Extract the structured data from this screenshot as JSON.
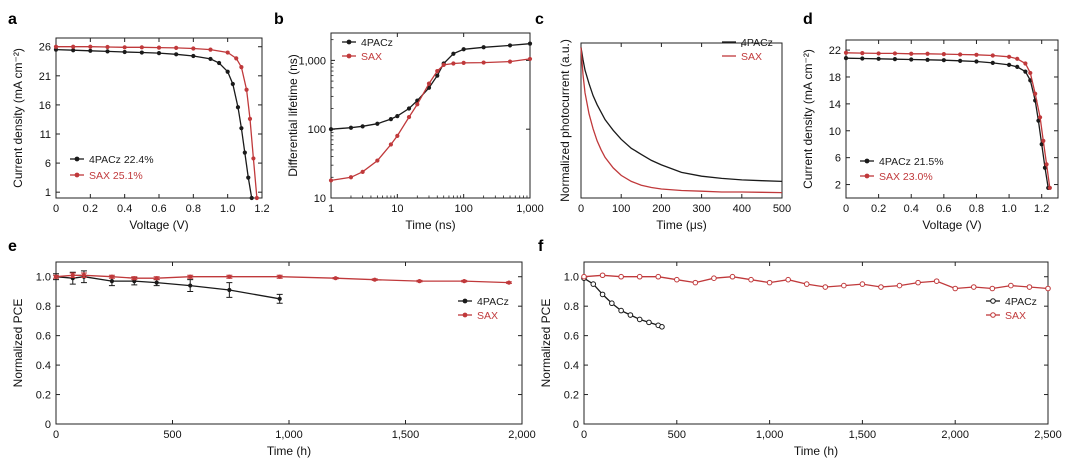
{
  "colors": {
    "black": "#1a1a1a",
    "red": "#c0393b"
  },
  "chart_data": [
    {
      "panel": "a",
      "type": "line",
      "xlabel": "Voltage (V)",
      "ylabel": "Current density (mA cm⁻²)",
      "xlim": [
        0,
        1.2
      ],
      "ylim": [
        0,
        27.5
      ],
      "xticks": [
        0,
        0.2,
        0.4,
        0.6,
        0.8,
        1.0,
        1.2
      ],
      "xtick_labels": [
        "0",
        "0.2",
        "0.4",
        "0.6",
        "0.8",
        "1.0",
        "1.2"
      ],
      "yticks": [
        1,
        6,
        11,
        16,
        21,
        26
      ],
      "ytick_labels": [
        "1",
        "6",
        "11",
        "16",
        "21",
        "26"
      ],
      "series": [
        {
          "name": "4PACz",
          "legend": "4PACz  22.4%",
          "color": "#1a1a1a",
          "marker": "dot",
          "x": [
            0,
            0.1,
            0.2,
            0.3,
            0.4,
            0.5,
            0.6,
            0.7,
            0.8,
            0.9,
            0.95,
            1.0,
            1.03,
            1.06,
            1.08,
            1.1,
            1.12,
            1.14
          ],
          "y": [
            25.5,
            25.4,
            25.3,
            25.2,
            25.1,
            25.0,
            24.9,
            24.7,
            24.4,
            23.9,
            23.2,
            21.7,
            19.6,
            15.6,
            12.0,
            7.8,
            3.5,
            0
          ]
        },
        {
          "name": "SAX",
          "legend": "SAX  25.1%",
          "color": "#c0393b",
          "marker": "dot",
          "x": [
            0,
            0.1,
            0.2,
            0.3,
            0.4,
            0.5,
            0.6,
            0.7,
            0.8,
            0.9,
            1.0,
            1.05,
            1.08,
            1.11,
            1.13,
            1.15,
            1.17
          ],
          "y": [
            26.0,
            26.0,
            26.0,
            25.95,
            25.9,
            25.9,
            25.85,
            25.8,
            25.7,
            25.5,
            25.0,
            24.0,
            22.5,
            18.6,
            13.6,
            6.8,
            0
          ]
        }
      ]
    },
    {
      "panel": "b",
      "type": "line",
      "xlabel": "Time (ns)",
      "ylabel": "Differential lifetime (ns)",
      "xscale": "log",
      "yscale": "log",
      "xlim": [
        1,
        1000
      ],
      "ylim": [
        10,
        2500
      ],
      "xticks": [
        1,
        10,
        100,
        1000
      ],
      "xtick_labels": [
        "1",
        "10",
        "100",
        "1,000"
      ],
      "yticks": [
        10,
        100,
        1000
      ],
      "ytick_labels": [
        "10",
        "100",
        "1,000"
      ],
      "series": [
        {
          "name": "4PACz",
          "legend": "4PACz",
          "color": "#1a1a1a",
          "marker": "dot",
          "x": [
            1,
            2,
            3,
            5,
            8,
            10,
            15,
            20,
            30,
            40,
            50,
            70,
            100,
            200,
            500,
            1000
          ],
          "y": [
            100,
            105,
            110,
            120,
            140,
            155,
            200,
            260,
            400,
            600,
            900,
            1250,
            1450,
            1550,
            1650,
            1750
          ]
        },
        {
          "name": "SAX",
          "legend": "SAX",
          "color": "#c0393b",
          "marker": "dot",
          "x": [
            1,
            2,
            3,
            5,
            8,
            10,
            15,
            20,
            30,
            40,
            50,
            70,
            100,
            200,
            500,
            1000
          ],
          "y": [
            18,
            20,
            24,
            35,
            60,
            80,
            150,
            230,
            460,
            700,
            860,
            900,
            920,
            930,
            960,
            1050
          ]
        }
      ]
    },
    {
      "panel": "c",
      "type": "line",
      "xlabel": "Time (μs)",
      "ylabel": "Normalized photocurrent (a.u.)",
      "xlim": [
        0,
        500
      ],
      "ylim": [
        0,
        1.03
      ],
      "xticks": [
        0,
        100,
        200,
        300,
        400,
        500
      ],
      "xtick_labels": [
        "0",
        "100",
        "200",
        "300",
        "400",
        "500"
      ],
      "yticks": [],
      "ytick_labels": [],
      "series": [
        {
          "name": "4PACz",
          "legend": "4PACz",
          "color": "#1a1a1a",
          "marker": "none",
          "x": [
            0,
            5,
            10,
            20,
            30,
            40,
            50,
            60,
            80,
            100,
            125,
            150,
            175,
            200,
            250,
            300,
            350,
            400,
            450,
            500
          ],
          "y": [
            1.0,
            0.92,
            0.85,
            0.76,
            0.68,
            0.62,
            0.57,
            0.52,
            0.45,
            0.39,
            0.33,
            0.29,
            0.25,
            0.22,
            0.17,
            0.145,
            0.13,
            0.12,
            0.115,
            0.11
          ]
        },
        {
          "name": "SAX",
          "legend": "SAX",
          "color": "#c0393b",
          "marker": "none",
          "x": [
            0,
            5,
            10,
            20,
            30,
            40,
            50,
            60,
            80,
            100,
            125,
            150,
            175,
            200,
            250,
            300,
            350,
            400,
            450,
            500
          ],
          "y": [
            1.0,
            0.82,
            0.7,
            0.56,
            0.46,
            0.38,
            0.32,
            0.27,
            0.2,
            0.15,
            0.11,
            0.085,
            0.07,
            0.06,
            0.05,
            0.045,
            0.04,
            0.04,
            0.038,
            0.036
          ]
        }
      ]
    },
    {
      "panel": "d",
      "type": "line",
      "xlabel": "Voltage (V)",
      "ylabel": "Current density (mA cm⁻²)",
      "xlim": [
        0,
        1.3
      ],
      "ylim": [
        0,
        23.5
      ],
      "xticks": [
        0,
        0.2,
        0.4,
        0.6,
        0.8,
        1.0,
        1.2
      ],
      "xtick_labels": [
        "0",
        "0.2",
        "0.4",
        "0.6",
        "0.8",
        "1.0",
        "1.2"
      ],
      "yticks": [
        2,
        6,
        10,
        14,
        18,
        22
      ],
      "ytick_labels": [
        "2",
        "6",
        "10",
        "14",
        "18",
        "22"
      ],
      "series": [
        {
          "name": "4PACz",
          "legend": "4PACz  21.5%",
          "color": "#1a1a1a",
          "marker": "dot",
          "x": [
            0,
            0.1,
            0.2,
            0.3,
            0.4,
            0.5,
            0.6,
            0.7,
            0.8,
            0.9,
            1.0,
            1.05,
            1.1,
            1.13,
            1.16,
            1.18,
            1.2,
            1.22,
            1.24
          ],
          "y": [
            20.8,
            20.75,
            20.7,
            20.65,
            20.6,
            20.55,
            20.5,
            20.4,
            20.3,
            20.1,
            19.8,
            19.5,
            18.8,
            17.5,
            14.5,
            11.5,
            8.0,
            4.5,
            1.5
          ]
        },
        {
          "name": "SAX",
          "legend": "SAX  23.0%",
          "color": "#c0393b",
          "marker": "dot",
          "x": [
            0,
            0.1,
            0.2,
            0.3,
            0.4,
            0.5,
            0.6,
            0.7,
            0.8,
            0.9,
            1.0,
            1.05,
            1.1,
            1.13,
            1.16,
            1.19,
            1.21,
            1.23,
            1.25
          ],
          "y": [
            21.6,
            21.55,
            21.5,
            21.5,
            21.45,
            21.45,
            21.4,
            21.35,
            21.3,
            21.2,
            21.0,
            20.7,
            20.0,
            18.6,
            15.5,
            12.0,
            8.5,
            5.0,
            1.5
          ]
        }
      ]
    },
    {
      "panel": "e",
      "type": "line",
      "xlabel": "Time (h)",
      "ylabel": "Normalized PCE",
      "xlim": [
        0,
        2000
      ],
      "ylim": [
        0,
        1.1
      ],
      "xticks": [
        0,
        500,
        1000,
        1500,
        2000
      ],
      "xtick_labels": [
        "0",
        "500",
        "1,000",
        "1,500",
        "2,000"
      ],
      "yticks": [
        0,
        0.2,
        0.4,
        0.6,
        0.8,
        1.0
      ],
      "ytick_labels": [
        "0",
        "0.2",
        "0.4",
        "0.6",
        "0.8",
        "1.0"
      ],
      "series": [
        {
          "name": "4PACz",
          "legend": "4PACz",
          "color": "#1a1a1a",
          "marker": "dot",
          "x": [
            0,
            72,
            120,
            240,
            336,
            432,
            576,
            744,
            960
          ],
          "y": [
            1.0,
            0.99,
            1.0,
            0.97,
            0.97,
            0.96,
            0.94,
            0.91,
            0.85
          ],
          "err": [
            0.02,
            0.04,
            0.04,
            0.03,
            0.025,
            0.02,
            0.04,
            0.05,
            0.03
          ]
        },
        {
          "name": "SAX",
          "legend": "SAX",
          "color": "#c0393b",
          "marker": "dot",
          "x": [
            0,
            72,
            120,
            240,
            336,
            432,
            576,
            744,
            960,
            1200,
            1368,
            1560,
            1752,
            1944
          ],
          "y": [
            1.0,
            1.01,
            1.01,
            1.0,
            0.99,
            0.99,
            1.0,
            1.0,
            1.0,
            0.99,
            0.98,
            0.97,
            0.97,
            0.96
          ],
          "err": [
            0.01,
            0.015,
            0.015,
            0.01,
            0.01,
            0.01,
            0.01,
            0.01,
            0.01,
            0.005,
            0.005,
            0.005,
            0.005,
            0.005
          ]
        }
      ]
    },
    {
      "panel": "f",
      "type": "line",
      "xlabel": "Time (h)",
      "ylabel": "Normalized PCE",
      "xlim": [
        0,
        2500
      ],
      "ylim": [
        0,
        1.1
      ],
      "xticks": [
        0,
        500,
        1000,
        1500,
        2000,
        2500
      ],
      "xtick_labels": [
        "0",
        "500",
        "1,000",
        "1,500",
        "2,000",
        "2,500"
      ],
      "yticks": [
        0,
        0.2,
        0.4,
        0.6,
        0.8,
        1.0
      ],
      "ytick_labels": [
        "0",
        "0.2",
        "0.4",
        "0.6",
        "0.8",
        "1.0"
      ],
      "series": [
        {
          "name": "4PACz",
          "legend": "4PACz",
          "color": "#1a1a1a",
          "marker": "ring",
          "x": [
            0,
            50,
            100,
            150,
            200,
            250,
            300,
            350,
            400,
            420
          ],
          "y": [
            0.99,
            0.95,
            0.88,
            0.82,
            0.77,
            0.74,
            0.71,
            0.69,
            0.67,
            0.66
          ]
        },
        {
          "name": "SAX",
          "legend": "SAX",
          "color": "#c0393b",
          "marker": "ring",
          "x": [
            0,
            100,
            200,
            300,
            400,
            500,
            600,
            700,
            800,
            900,
            1000,
            1100,
            1200,
            1300,
            1400,
            1500,
            1600,
            1700,
            1800,
            1900,
            2000,
            2100,
            2200,
            2300,
            2400,
            2500
          ],
          "y": [
            1.0,
            1.01,
            1.0,
            1.0,
            1.0,
            0.98,
            0.96,
            0.99,
            1.0,
            0.98,
            0.96,
            0.98,
            0.95,
            0.93,
            0.94,
            0.95,
            0.93,
            0.94,
            0.96,
            0.97,
            0.92,
            0.93,
            0.92,
            0.94,
            0.93,
            0.92
          ]
        }
      ]
    }
  ]
}
